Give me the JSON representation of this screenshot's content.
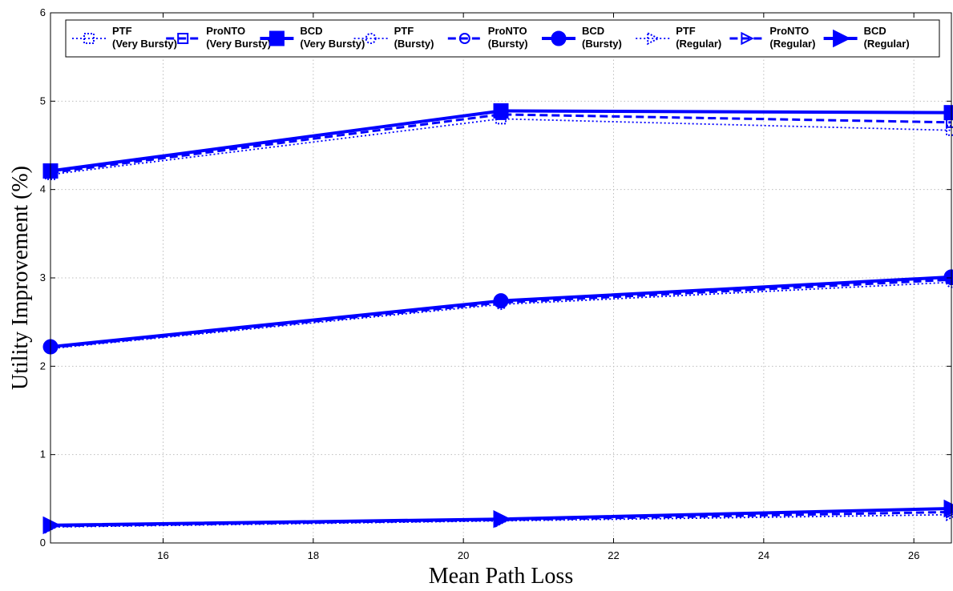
{
  "chart_data": {
    "type": "line",
    "title": "",
    "xlabel": "Mean Path Loss",
    "ylabel": "Utility Improvement (%)",
    "xlim": [
      14.5,
      26.5
    ],
    "ylim": [
      0,
      6
    ],
    "xticks": [
      "16",
      "18",
      "20",
      "22",
      "24",
      "26"
    ],
    "yticks": [
      "0",
      "1",
      "2",
      "3",
      "4",
      "5",
      "6"
    ],
    "grid": true,
    "legend_position": "top",
    "series": [
      {
        "name": "PTF\n(Very Bursty)",
        "line": "dotted",
        "marker": "square",
        "x": [
          14.5,
          20.5,
          26.5
        ],
        "y": [
          4.17,
          4.8,
          4.67
        ]
      },
      {
        "name": "ProNTO\n(Very Bursty)",
        "line": "dashed",
        "marker": "square",
        "x": [
          14.5,
          20.5,
          26.5
        ],
        "y": [
          4.19,
          4.85,
          4.76
        ]
      },
      {
        "name": "BCD\n(Very Bursty)",
        "line": "solid",
        "marker": "square",
        "x": [
          14.5,
          20.5,
          26.5
        ],
        "y": [
          4.21,
          4.89,
          4.87
        ]
      },
      {
        "name": "PTF\n(Bursty)",
        "line": "dotted",
        "marker": "circle",
        "x": [
          14.5,
          20.5,
          26.5
        ],
        "y": [
          2.2,
          2.7,
          2.95
        ]
      },
      {
        "name": "ProNTO\n(Bursty)",
        "line": "dashed",
        "marker": "circle",
        "x": [
          14.5,
          20.5,
          26.5
        ],
        "y": [
          2.21,
          2.72,
          2.98
        ]
      },
      {
        "name": "BCD\n(Bursty)",
        "line": "solid",
        "marker": "circle",
        "x": [
          14.5,
          20.5,
          26.5
        ],
        "y": [
          2.22,
          2.74,
          3.01
        ]
      },
      {
        "name": "PTF\n(Regular)",
        "line": "dotted",
        "marker": "triangle-right",
        "x": [
          14.5,
          20.5,
          26.5
        ],
        "y": [
          0.18,
          0.25,
          0.32
        ]
      },
      {
        "name": "ProNTO\n(Regular)",
        "line": "dashed",
        "marker": "triangle-right",
        "x": [
          14.5,
          20.5,
          26.5
        ],
        "y": [
          0.19,
          0.26,
          0.35
        ]
      },
      {
        "name": "BCD\n(Regular)",
        "line": "solid",
        "marker": "triangle-right",
        "x": [
          14.5,
          20.5,
          26.5
        ],
        "y": [
          0.2,
          0.27,
          0.39
        ]
      }
    ],
    "colors": {
      "series": "#0000ff",
      "grid": "#bdbdbd",
      "axis": "#000000"
    }
  }
}
